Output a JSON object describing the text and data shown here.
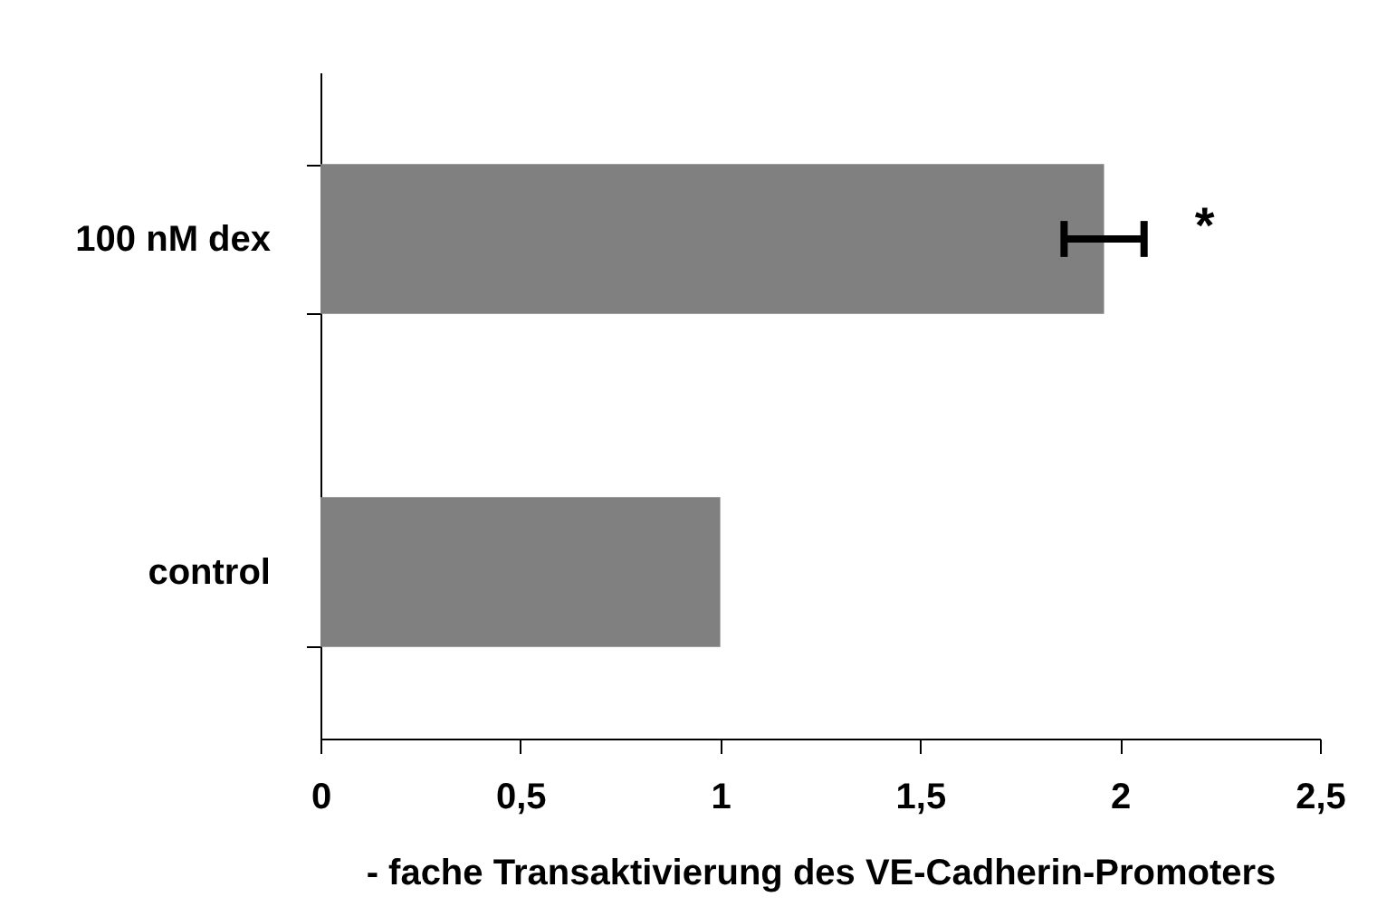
{
  "chart_data": {
    "type": "bar",
    "orientation": "horizontal",
    "categories": [
      "100 nM dex",
      "control"
    ],
    "xlabel": "- fache Transaktivierung des VE-Cadherin-Promoters",
    "series": [
      {
        "color": "#808080",
        "values": [
          1.96,
          1.0
        ],
        "errors": [
          0.1,
          null
        ]
      }
    ],
    "xlim": [
      0,
      2.5
    ],
    "xticks": [
      0,
      {
        "value": 0.5,
        "label": "0,5"
      },
      1,
      {
        "value": 1.5,
        "label": "1,5"
      },
      2,
      {
        "value": 2.5,
        "label": "2,5"
      }
    ],
    "annotations": [
      "*"
    ],
    "grid": false
  }
}
